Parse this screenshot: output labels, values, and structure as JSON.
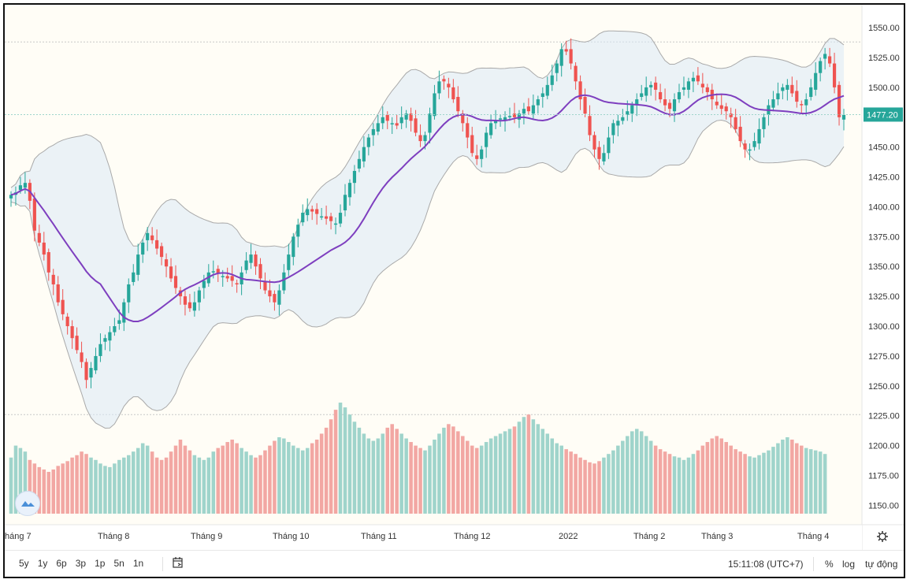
{
  "chart_data": {
    "type": "candlestick",
    "price_axis": {
      "ticks": [
        "1550.00",
        "1525.00",
        "1500.00",
        "1475.00",
        "1450.00",
        "1425.00",
        "1400.00",
        "1375.00",
        "1350.00",
        "1325.00",
        "1300.00",
        "1275.00",
        "1250.00",
        "1225.00",
        "1200.00",
        "1175.00",
        "1150.00"
      ],
      "range": [
        1143,
        1556
      ]
    },
    "time_axis": {
      "labels": [
        "háng 7",
        "Tháng 8",
        "Tháng 9",
        "Tháng 10",
        "Tháng 11",
        "Tháng 12",
        "2022",
        "Tháng 2",
        "Tháng 3",
        "Tháng 4"
      ]
    },
    "last_price": "1477.20",
    "bands_visible": true,
    "sma_visible": true,
    "volume_visible": true,
    "colors": {
      "up": "#26a69a",
      "down": "#ef5350",
      "sma": "#7e3fbf",
      "band_fill": "#dbe9f6",
      "band_line": "#a9a9a9",
      "up_volume": "#9fd4cb",
      "down_volume": "#f2a7a3"
    },
    "close_series": [
      1410,
      1412,
      1418,
      1420,
      1405,
      1380,
      1370,
      1360,
      1345,
      1335,
      1320,
      1310,
      1300,
      1290,
      1280,
      1270,
      1255,
      1265,
      1275,
      1285,
      1290,
      1295,
      1300,
      1305,
      1320,
      1335,
      1345,
      1360,
      1370,
      1378,
      1372,
      1365,
      1358,
      1350,
      1340,
      1332,
      1325,
      1318,
      1315,
      1320,
      1330,
      1338,
      1345,
      1346,
      1344,
      1342,
      1340,
      1338,
      1335,
      1345,
      1355,
      1360,
      1350,
      1340,
      1330,
      1325,
      1320,
      1330,
      1345,
      1360,
      1375,
      1385,
      1395,
      1398,
      1396,
      1394,
      1392,
      1390,
      1388,
      1386,
      1395,
      1410,
      1420,
      1430,
      1440,
      1450,
      1458,
      1465,
      1470,
      1475,
      1472,
      1470,
      1468,
      1475,
      1478,
      1472,
      1462,
      1455,
      1460,
      1478,
      1495,
      1505,
      1505,
      1500,
      1490,
      1480,
      1470,
      1458,
      1445,
      1440,
      1448,
      1462,
      1470,
      1472,
      1474,
      1475,
      1476,
      1475,
      1478,
      1482,
      1480,
      1485,
      1490,
      1495,
      1502,
      1510,
      1520,
      1532,
      1530,
      1520,
      1505,
      1490,
      1478,
      1460,
      1448,
      1440,
      1445,
      1458,
      1470,
      1472,
      1475,
      1480,
      1485,
      1490,
      1495,
      1500,
      1502,
      1498,
      1490,
      1485,
      1482,
      1490,
      1496,
      1500,
      1505,
      1508,
      1505,
      1500,
      1496,
      1490,
      1485,
      1482,
      1480,
      1475,
      1465,
      1455,
      1448,
      1448,
      1455,
      1465,
      1475,
      1485,
      1490,
      1495,
      1500,
      1502,
      1495,
      1488,
      1485,
      1490,
      1500,
      1512,
      1522,
      1528,
      1520,
      1500,
      1475,
      1477
    ],
    "volume_series": [
      1190,
      1200,
      1198,
      1195,
      1188,
      1185,
      1182,
      1180,
      1178,
      1180,
      1183,
      1185,
      1187,
      1190,
      1192,
      1195,
      1193,
      1190,
      1188,
      1185,
      1183,
      1182,
      1185,
      1188,
      1190,
      1192,
      1195,
      1198,
      1202,
      1200,
      1195,
      1190,
      1188,
      1190,
      1195,
      1200,
      1205,
      1200,
      1196,
      1192,
      1190,
      1188,
      1190,
      1195,
      1198,
      1200,
      1203,
      1205,
      1202,
      1198,
      1195,
      1192,
      1190,
      1192,
      1196,
      1200,
      1204,
      1207,
      1206,
      1203,
      1200,
      1198,
      1196,
      1198,
      1202,
      1205,
      1210,
      1215,
      1222,
      1230,
      1236,
      1232,
      1226,
      1220,
      1215,
      1210,
      1206,
      1204,
      1206,
      1210,
      1215,
      1218,
      1214,
      1210,
      1206,
      1203,
      1200,
      1198,
      1196,
      1200,
      1205,
      1210,
      1215,
      1218,
      1216,
      1212,
      1208,
      1204,
      1200,
      1198,
      1200,
      1203,
      1206,
      1208,
      1210,
      1212,
      1214,
      1216,
      1220,
      1224,
      1226,
      1222,
      1218,
      1214,
      1210,
      1206,
      1202,
      1200,
      1197,
      1195,
      1193,
      1190,
      1188,
      1186,
      1185,
      1187,
      1190,
      1193,
      1196,
      1200,
      1204,
      1208,
      1212,
      1214,
      1212,
      1208,
      1204,
      1200,
      1197,
      1195,
      1193,
      1191,
      1190,
      1188,
      1190,
      1193,
      1196,
      1200,
      1203,
      1206,
      1208,
      1206,
      1203,
      1200,
      1197,
      1195,
      1193,
      1191,
      1190,
      1192,
      1194,
      1196,
      1199,
      1202,
      1205,
      1207,
      1205,
      1202,
      1200,
      1198,
      1197,
      1196,
      1195,
      1193
    ]
  },
  "toolbar": {
    "ranges": [
      "5y",
      "1y",
      "6p",
      "3p",
      "1p",
      "5n",
      "1n"
    ],
    "clock": "15:11:08 (UTC+7)",
    "options": [
      "%",
      "log",
      "tự động"
    ],
    "goto_icon": "calendar-goto-icon",
    "settings_icon": "gear-icon",
    "logo_icon": "cloud-logo-icon"
  }
}
